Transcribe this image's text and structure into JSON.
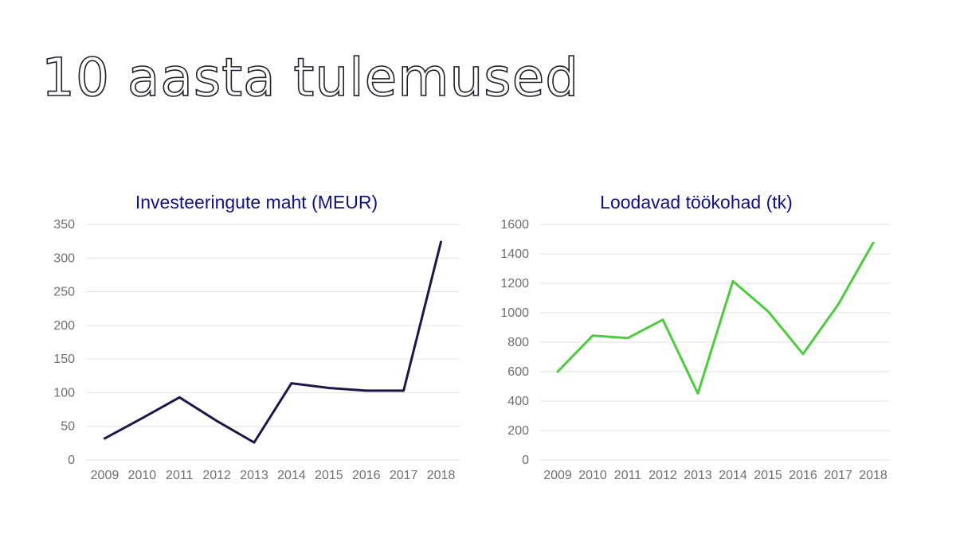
{
  "page": {
    "title": "10 aasta tulemused"
  },
  "chart_data": [
    {
      "type": "line",
      "title": "Investeeringute maht (MEUR)",
      "xlabel": "",
      "ylabel": "",
      "x": [
        "2009",
        "2010",
        "2011",
        "2012",
        "2013",
        "2014",
        "2015",
        "2016",
        "2017",
        "2018"
      ],
      "series": [
        {
          "values": [
            32,
            62,
            93,
            58,
            26,
            114,
            107,
            103,
            103,
            324
          ],
          "color": "#1f1547"
        }
      ],
      "ylim": [
        0,
        350
      ],
      "yticks": [
        0,
        50,
        100,
        150,
        200,
        250,
        300,
        350
      ],
      "grid": true,
      "legend": "none"
    },
    {
      "type": "line",
      "title": "Loodavad töökohad (tk)",
      "xlabel": "",
      "ylabel": "",
      "x": [
        "2009",
        "2010",
        "2011",
        "2012",
        "2013",
        "2014",
        "2015",
        "2016",
        "2017",
        "2018"
      ],
      "series": [
        {
          "values": [
            600,
            845,
            828,
            953,
            452,
            1215,
            1010,
            720,
            1055,
            1475
          ],
          "color": "#4ccc3c"
        }
      ],
      "ylim": [
        0,
        1600
      ],
      "yticks": [
        0,
        200,
        400,
        600,
        800,
        1000,
        1200,
        1400,
        1600
      ],
      "grid": true,
      "legend": "none"
    }
  ]
}
